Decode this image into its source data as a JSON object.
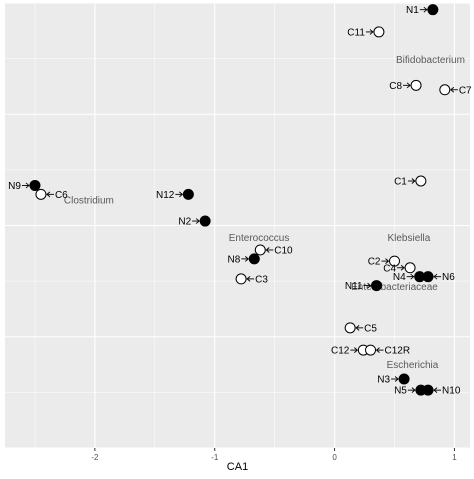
{
  "chart_data": {
    "type": "scatter",
    "xlabel": "CA1",
    "ylabel": "",
    "xlim": [
      -2.75,
      1.13
    ],
    "ylim": [
      -1.0,
      1.0
    ],
    "x_ticks": [
      -2,
      -1,
      0,
      1
    ],
    "x_tick_labels": [
      "-2",
      "-1",
      "0",
      "1"
    ],
    "grid": true,
    "background": "#EBEBEB",
    "gridline_color": "#FFFFFF",
    "point_colors": {
      "N": "#000000",
      "C": "#FFFFFF"
    },
    "points": [
      {
        "label": "N1",
        "group": "N",
        "x": 0.82,
        "y": 0.97,
        "label_side": "left"
      },
      {
        "label": "C11",
        "group": "C",
        "x": 0.37,
        "y": 0.87,
        "label_side": "left"
      },
      {
        "label": "C8",
        "group": "C",
        "x": 0.68,
        "y": 0.63,
        "label_side": "left"
      },
      {
        "label": "C7",
        "group": "C",
        "x": 0.92,
        "y": 0.61,
        "label_side": "right"
      },
      {
        "label": "C1",
        "group": "C",
        "x": 0.72,
        "y": 0.2,
        "label_side": "left"
      },
      {
        "label": "N9",
        "group": "N",
        "x": -2.5,
        "y": 0.18,
        "label_side": "left"
      },
      {
        "label": "C6",
        "group": "C",
        "x": -2.45,
        "y": 0.14,
        "label_side": "right"
      },
      {
        "label": "N12",
        "group": "N",
        "x": -1.22,
        "y": 0.14,
        "label_side": "left"
      },
      {
        "label": "N2",
        "group": "N",
        "x": -1.08,
        "y": 0.02,
        "label_side": "left"
      },
      {
        "label": "C10",
        "group": "C",
        "x": -0.62,
        "y": -0.11,
        "label_side": "right"
      },
      {
        "label": "N8",
        "group": "N",
        "x": -0.67,
        "y": -0.15,
        "label_side": "left"
      },
      {
        "label": "C3",
        "group": "C",
        "x": -0.78,
        "y": -0.24,
        "label_side": "right"
      },
      {
        "label": "C2",
        "group": "C",
        "x": 0.5,
        "y": -0.16,
        "label_side": "left"
      },
      {
        "label": "C4",
        "group": "C",
        "x": 0.63,
        "y": -0.19,
        "label_side": "left"
      },
      {
        "label": "N4",
        "group": "N",
        "x": 0.71,
        "y": -0.23,
        "label_side": "left"
      },
      {
        "label": "N6",
        "group": "N",
        "x": 0.78,
        "y": -0.23,
        "label_side": "right"
      },
      {
        "label": "N11",
        "group": "N",
        "x": 0.35,
        "y": -0.27,
        "label_side": "left"
      },
      {
        "label": "C5",
        "group": "C",
        "x": 0.13,
        "y": -0.46,
        "label_side": "right"
      },
      {
        "label": "C12",
        "group": "C",
        "x": 0.24,
        "y": -0.56,
        "label_side": "left"
      },
      {
        "label": "C12R",
        "group": "C",
        "x": 0.3,
        "y": -0.56,
        "label_side": "right"
      },
      {
        "label": "N3",
        "group": "N",
        "x": 0.58,
        "y": -0.69,
        "label_side": "left"
      },
      {
        "label": "N5",
        "group": "N",
        "x": 0.72,
        "y": -0.74,
        "label_side": "left"
      },
      {
        "label": "N10",
        "group": "N",
        "x": 0.78,
        "y": -0.74,
        "label_side": "right"
      }
    ],
    "annotations": [
      {
        "text": "Bifidobacterium",
        "x": 0.8,
        "y": 0.73
      },
      {
        "text": "Clostridium",
        "x": -2.05,
        "y": 0.1
      },
      {
        "text": "Enterococcus",
        "x": -0.63,
        "y": -0.07
      },
      {
        "text": "Klebsiella",
        "x": 0.62,
        "y": -0.07
      },
      {
        "text": "Enterobacteriaceae",
        "x": 0.5,
        "y": -0.29
      },
      {
        "text": "Escherichia",
        "x": 0.65,
        "y": -0.64
      }
    ]
  }
}
